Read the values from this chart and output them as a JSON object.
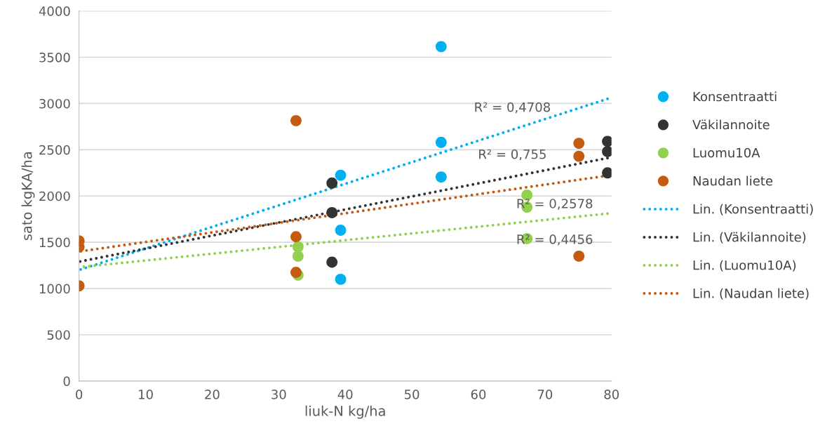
{
  "chart_data": {
    "type": "scatter",
    "xlabel": "liuk-N kg/ha",
    "ylabel": "sato kgKA/ha",
    "xlim": [
      0,
      80
    ],
    "xticks": [
      0,
      10,
      20,
      30,
      40,
      50,
      60,
      70,
      80
    ],
    "ylim": [
      0,
      4000
    ],
    "yticks": [
      0,
      500,
      1000,
      1500,
      2000,
      2500,
      3000,
      3500,
      4000
    ],
    "grid": "y",
    "legend": "right",
    "marker": "circle",
    "series": [
      {
        "name": "Konsentraatti",
        "color": "#00b0f0",
        "x": [
          39.3,
          39.3,
          39.3,
          54.4,
          54.4,
          54.4
        ],
        "values": [
          2225,
          1630,
          1100,
          3615,
          2580,
          2205
        ]
      },
      {
        "name": "Väkilannoite",
        "color": "#333333",
        "x": [
          38,
          38,
          38,
          79.4,
          79.4,
          79.4
        ],
        "values": [
          2140,
          1820,
          1285,
          2590,
          2480,
          2250
        ]
      },
      {
        "name": "Luomu10A",
        "color": "#92d050",
        "x": [
          32.9,
          32.9,
          32.9,
          67.3,
          67.3,
          67.3
        ],
        "values": [
          1450,
          1350,
          1145,
          2010,
          1880,
          1540
        ]
      },
      {
        "name": "Naudan liete",
        "color": "#c55a11",
        "x": [
          0,
          0,
          0,
          32.6,
          32.6,
          32.6,
          75.1,
          75.1,
          75.1
        ],
        "values": [
          1515,
          1450,
          1030,
          2815,
          1560,
          1175,
          2570,
          2430,
          1350
        ]
      },
      {
        "name": "Lin. (Konsentraatti)",
        "type": "line",
        "line_style": "dotted",
        "marker": "none",
        "color": "#00b0f0",
        "x": [
          0,
          79.4
        ],
        "values": [
          1200,
          3050
        ]
      },
      {
        "name": "Lin. (Väkilannoite)",
        "type": "line",
        "line_style": "dotted",
        "marker": "none",
        "color": "#333333",
        "x": [
          0,
          79.4
        ],
        "values": [
          1290,
          2410
        ]
      },
      {
        "name": "Lin. (Luomu10A)",
        "type": "line",
        "line_style": "dotted",
        "marker": "none",
        "color": "#92d050",
        "x": [
          0,
          79.4
        ],
        "values": [
          1230,
          1810
        ]
      },
      {
        "name": "Lin. (Naudan liete)",
        "type": "line",
        "line_style": "dotted",
        "marker": "none",
        "color": "#c55a11",
        "x": [
          0,
          79.4
        ],
        "values": [
          1400,
          2220
        ]
      }
    ],
    "annotations": [
      "R² = 0,4708",
      "R² = 0,755",
      "R² = 0,4456",
      "R² = 0,2578"
    ]
  }
}
